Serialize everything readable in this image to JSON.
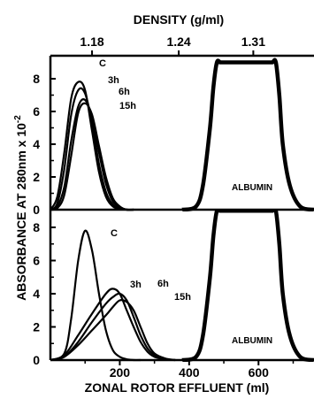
{
  "chart_data": {
    "type": "line",
    "top_axis": {
      "label": "DENSITY (g/ml)",
      "ticks": [
        {
          "x": 120,
          "label": "1.18"
        },
        {
          "x": 370,
          "label": "1.24"
        },
        {
          "x": 585,
          "label": "1.31"
        }
      ]
    },
    "xlabel": "ZONAL ROTOR EFFLUENT (ml)",
    "ylabel": "ABSORBANCE AT 280nm x 10",
    "ylabel_exponent": "-2",
    "xlim": [
      0,
      760
    ],
    "x_ticks": [
      "200",
      "400",
      "600"
    ],
    "grid": false,
    "panels": [
      {
        "ylim": [
          0,
          9
        ],
        "y_ticks": [
          "0",
          "2",
          "4",
          "6",
          "8"
        ],
        "albumin_label": "ALBUMIN",
        "series": [
          {
            "name": "C",
            "x": [
              0,
              20,
              40,
              60,
              80,
              100,
              120,
              140,
              160,
              180,
              200,
              220,
              240
            ],
            "y": [
              0,
              0.8,
              3.5,
              6.8,
              7.8,
              7.3,
              4.8,
              2.3,
              0.8,
              0.2,
              0.05,
              0,
              0
            ]
          },
          {
            "name": "3h",
            "x": [
              0,
              20,
              40,
              60,
              80,
              100,
              120,
              140,
              160,
              180,
              200,
              220,
              240
            ],
            "y": [
              0,
              0.4,
              2.5,
              5.8,
              7.3,
              7.1,
              5.3,
              2.8,
              1.1,
              0.3,
              0.1,
              0,
              0
            ]
          },
          {
            "name": "6h",
            "x": [
              0,
              20,
              40,
              60,
              80,
              100,
              120,
              140,
              160,
              180,
              200,
              220,
              240
            ],
            "y": [
              0,
              0.2,
              1.4,
              4.2,
              6.3,
              6.7,
              5.6,
              3.5,
              1.6,
              0.5,
              0.15,
              0,
              0
            ]
          },
          {
            "name": "15h",
            "x": [
              0,
              20,
              40,
              60,
              80,
              100,
              120,
              140,
              160,
              180,
              200,
              220,
              240
            ],
            "y": [
              0,
              0.1,
              0.9,
              3.3,
              5.9,
              6.5,
              5.8,
              3.9,
              2.0,
              0.7,
              0.2,
              0,
              0
            ]
          },
          {
            "name": "ALBUMIN",
            "x": [
              380,
              420,
              440,
              460,
              470,
              480,
              490,
              500,
              620,
              630,
              640,
              650,
              660,
              670,
              690,
              720,
              760
            ],
            "y": [
              0,
              0.2,
              1.5,
              5.0,
              7.5,
              9.0,
              9.0,
              9.0,
              9.0,
              9.0,
              9.0,
              9.0,
              7.0,
              4.0,
              1.5,
              0.2,
              0
            ]
          }
        ]
      },
      {
        "ylim": [
          0,
          9
        ],
        "y_ticks": [
          "0",
          "2",
          "4",
          "6",
          "8"
        ],
        "albumin_label": "ALBUMIN",
        "series": [
          {
            "name": "C",
            "x": [
              0,
              40,
              60,
              80,
              100,
              120,
              140,
              160,
              180,
              200,
              220,
              240,
              260
            ],
            "y": [
              0,
              0.4,
              2.5,
              6.0,
              7.8,
              6.6,
              4.0,
              1.8,
              0.6,
              0.2,
              0.05,
              0,
              0
            ]
          },
          {
            "name": "3h",
            "x": [
              0,
              40,
              80,
              120,
              160,
              180,
              200,
              220,
              240,
              260,
              280,
              300,
              330,
              360
            ],
            "y": [
              0,
              0.3,
              1.5,
              2.8,
              4.0,
              4.3,
              4.0,
              3.0,
              2.0,
              1.1,
              0.5,
              0.2,
              0.05,
              0
            ]
          },
          {
            "name": "6h",
            "x": [
              0,
              40,
              80,
              120,
              160,
              180,
              200,
              220,
              240,
              260,
              280,
              300,
              330,
              360
            ],
            "y": [
              0,
              0.2,
              1.1,
              2.3,
              3.4,
              3.8,
              4.0,
              3.6,
              2.6,
              1.5,
              0.7,
              0.3,
              0.05,
              0
            ]
          },
          {
            "name": "15h",
            "x": [
              0,
              40,
              80,
              120,
              160,
              180,
              200,
              220,
              240,
              260,
              280,
              300,
              330,
              360
            ],
            "y": [
              0,
              0.2,
              0.9,
              1.8,
              2.7,
              3.2,
              3.6,
              3.5,
              3.0,
              2.0,
              1.0,
              0.4,
              0.1,
              0
            ]
          },
          {
            "name": "ALBUMIN",
            "x": [
              380,
              420,
              440,
              460,
              470,
              480,
              490,
              500,
              620,
              630,
              640,
              650,
              660,
              670,
              690,
              720,
              760
            ],
            "y": [
              0,
              0.2,
              1.5,
              5.0,
              7.5,
              9.0,
              9.0,
              9.0,
              9.0,
              9.0,
              9.0,
              9.0,
              7.0,
              4.0,
              1.5,
              0.2,
              0
            ]
          }
        ]
      }
    ]
  }
}
